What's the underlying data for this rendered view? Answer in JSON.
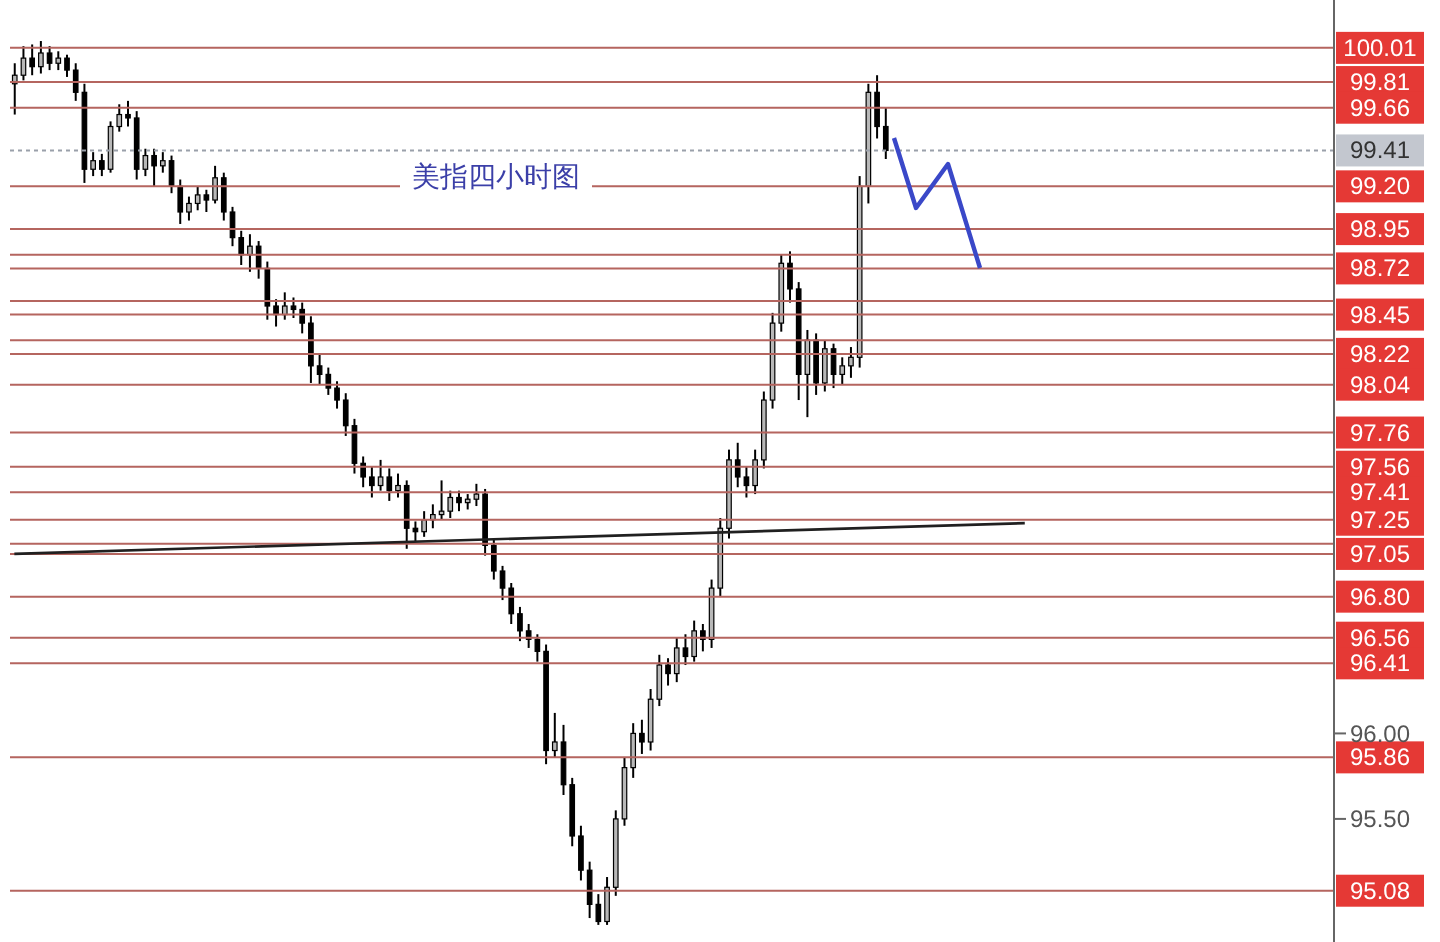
{
  "chart_data": {
    "type": "candlestick",
    "title": "美指四小时图",
    "tick_labels": "y",
    "ylim": [
      94.78,
      100.29
    ],
    "yticks": [
      {
        "value": 95.5,
        "label": "95.50"
      },
      {
        "value": 96,
        "label": "96.00"
      }
    ],
    "categories": [
      null,
      null,
      null,
      null,
      null,
      null,
      null,
      null,
      null,
      null,
      null,
      null,
      null,
      null,
      null,
      null,
      null,
      null,
      null,
      null,
      null,
      null,
      null,
      null,
      null,
      null,
      null,
      null,
      null,
      null,
      null,
      null,
      null,
      null,
      null,
      null,
      null,
      null,
      null,
      null,
      null,
      null,
      null,
      null,
      null,
      null,
      null,
      null,
      null,
      null,
      null,
      null,
      null,
      null,
      null,
      null,
      null,
      null,
      null,
      null,
      null,
      null,
      null,
      null,
      null,
      null,
      null,
      null,
      null,
      null,
      null,
      null,
      null,
      null,
      null,
      null,
      null,
      null,
      null,
      null,
      null,
      null,
      null,
      null,
      null,
      null,
      null,
      null,
      null,
      null,
      null,
      null,
      null,
      null,
      null,
      null,
      null,
      null,
      null,
      null,
      null,
      null,
      null,
      null,
      null,
      null,
      null,
      null,
      null,
      null,
      null,
      null,
      null,
      null,
      null,
      null,
      null,
      null,
      null,
      null,
      null,
      null,
      null,
      null,
      null,
      null,
      null,
      null,
      null,
      null,
      null,
      null,
      null,
      null,
      null,
      null,
      null,
      null,
      null,
      null,
      null,
      null,
      null,
      null,
      null,
      null,
      null,
      null,
      null,
      null,
      null,
      null
    ],
    "series": [
      {
        "type": "candlestick",
        "color": "#000000",
        "ohlc": [
          [
            99.8,
            99.92,
            99.62,
            99.85
          ],
          [
            99.85,
            100.02,
            99.82,
            99.95
          ],
          [
            99.95,
            100.03,
            99.85,
            99.9
          ],
          [
            99.9,
            100.05,
            99.86,
            99.98
          ],
          [
            99.98,
            100.02,
            99.88,
            99.92
          ],
          [
            99.92,
            99.99,
            99.88,
            99.95
          ],
          [
            99.95,
            99.97,
            99.84,
            99.88
          ],
          [
            99.88,
            99.92,
            99.7,
            99.75
          ],
          [
            99.75,
            99.8,
            99.22,
            99.3
          ],
          [
            99.3,
            99.4,
            99.26,
            99.35
          ],
          [
            99.35,
            99.39,
            99.26,
            99.3
          ],
          [
            99.3,
            99.58,
            99.28,
            99.55
          ],
          [
            99.55,
            99.68,
            99.52,
            99.62
          ],
          [
            99.62,
            99.7,
            99.55,
            99.6
          ],
          [
            99.6,
            99.64,
            99.24,
            99.3
          ],
          [
            99.3,
            99.42,
            99.26,
            99.38
          ],
          [
            99.38,
            99.42,
            99.2,
            99.32
          ],
          [
            99.32,
            99.4,
            99.28,
            99.35
          ],
          [
            99.35,
            99.38,
            99.16,
            99.2
          ],
          [
            99.2,
            99.24,
            98.98,
            99.05
          ],
          [
            99.05,
            99.14,
            99.0,
            99.1
          ],
          [
            99.1,
            99.2,
            99.06,
            99.15
          ],
          [
            99.15,
            99.18,
            99.05,
            99.12
          ],
          [
            99.12,
            99.32,
            99.1,
            99.25
          ],
          [
            99.25,
            99.28,
            99.0,
            99.05
          ],
          [
            99.05,
            99.08,
            98.85,
            98.9
          ],
          [
            98.9,
            98.94,
            98.74,
            98.8
          ],
          [
            98.8,
            98.92,
            98.7,
            98.85
          ],
          [
            98.85,
            98.88,
            98.66,
            98.72
          ],
          [
            98.72,
            98.76,
            98.42,
            98.5
          ],
          [
            98.5,
            98.54,
            98.38,
            98.45
          ],
          [
            98.45,
            98.58,
            98.42,
            98.5
          ],
          [
            98.5,
            98.55,
            98.43,
            98.48
          ],
          [
            98.48,
            98.52,
            98.34,
            98.4
          ],
          [
            98.4,
            98.44,
            98.05,
            98.15
          ],
          [
            98.15,
            98.22,
            98.04,
            98.1
          ],
          [
            98.1,
            98.14,
            97.98,
            98.02
          ],
          [
            98.02,
            98.06,
            97.9,
            97.95
          ],
          [
            97.95,
            97.99,
            97.74,
            97.8
          ],
          [
            97.8,
            97.84,
            97.52,
            97.58
          ],
          [
            97.58,
            97.62,
            97.44,
            97.5
          ],
          [
            97.5,
            97.56,
            97.38,
            97.45
          ],
          [
            97.45,
            97.6,
            97.42,
            97.5
          ],
          [
            97.5,
            97.55,
            97.36,
            97.42
          ],
          [
            97.42,
            97.52,
            97.38,
            97.45
          ],
          [
            97.45,
            97.48,
            97.08,
            97.2
          ],
          [
            97.2,
            97.24,
            97.12,
            97.18
          ],
          [
            97.18,
            97.3,
            97.15,
            97.25
          ],
          [
            97.25,
            97.34,
            97.2,
            97.28
          ],
          [
            97.28,
            97.48,
            97.25,
            97.3
          ],
          [
            97.3,
            97.42,
            97.26,
            97.38
          ],
          [
            97.38,
            97.42,
            97.3,
            97.35
          ],
          [
            97.35,
            97.4,
            97.31,
            97.37
          ],
          [
            97.37,
            97.46,
            97.33,
            97.4
          ],
          [
            97.4,
            97.43,
            97.04,
            97.1
          ],
          [
            97.1,
            97.14,
            96.9,
            96.95
          ],
          [
            96.95,
            96.98,
            96.78,
            96.85
          ],
          [
            96.85,
            96.88,
            96.64,
            96.7
          ],
          [
            96.7,
            96.74,
            96.54,
            96.6
          ],
          [
            96.6,
            96.64,
            96.5,
            96.55
          ],
          [
            96.55,
            96.58,
            96.42,
            96.48
          ],
          [
            96.48,
            96.52,
            95.82,
            95.9
          ],
          [
            95.9,
            96.12,
            95.86,
            95.95
          ],
          [
            95.95,
            96.05,
            95.64,
            95.7
          ],
          [
            95.7,
            95.74,
            95.34,
            95.4
          ],
          [
            95.4,
            95.46,
            95.14,
            95.2
          ],
          [
            95.2,
            95.25,
            94.92,
            95.0
          ],
          [
            95.0,
            95.06,
            94.88,
            94.9
          ],
          [
            94.9,
            95.16,
            94.88,
            95.1
          ],
          [
            95.1,
            95.55,
            95.05,
            95.5
          ],
          [
            95.5,
            95.86,
            95.46,
            95.8
          ],
          [
            95.8,
            96.06,
            95.74,
            96.0
          ],
          [
            96.0,
            96.08,
            95.88,
            95.95
          ],
          [
            95.95,
            96.26,
            95.9,
            96.2
          ],
          [
            96.2,
            96.46,
            96.16,
            96.4
          ],
          [
            96.4,
            96.44,
            96.28,
            96.35
          ],
          [
            96.35,
            96.56,
            96.3,
            96.5
          ],
          [
            96.5,
            96.58,
            96.4,
            96.45
          ],
          [
            96.45,
            96.66,
            96.42,
            96.6
          ],
          [
            96.6,
            96.64,
            96.48,
            96.55
          ],
          [
            96.55,
            96.9,
            96.5,
            96.85
          ],
          [
            96.85,
            97.26,
            96.8,
            97.2
          ],
          [
            97.2,
            97.66,
            97.14,
            97.6
          ],
          [
            97.6,
            97.7,
            97.44,
            97.5
          ],
          [
            97.5,
            97.56,
            97.38,
            97.45
          ],
          [
            97.45,
            97.66,
            97.4,
            97.6
          ],
          [
            97.6,
            98.0,
            97.55,
            97.95
          ],
          [
            97.95,
            98.46,
            97.9,
            98.4
          ],
          [
            98.4,
            98.8,
            98.35,
            98.75
          ],
          [
            98.75,
            98.82,
            98.52,
            98.6
          ],
          [
            98.6,
            98.64,
            97.95,
            98.1
          ],
          [
            98.1,
            98.36,
            97.85,
            98.3
          ],
          [
            98.3,
            98.34,
            97.98,
            98.05
          ],
          [
            98.05,
            98.3,
            98.0,
            98.25
          ],
          [
            98.25,
            98.28,
            98.02,
            98.1
          ],
          [
            98.1,
            98.2,
            98.04,
            98.15
          ],
          [
            98.15,
            98.26,
            98.08,
            98.2
          ],
          [
            98.2,
            99.26,
            98.14,
            99.2
          ],
          [
            99.2,
            99.8,
            99.1,
            99.75
          ],
          [
            99.75,
            99.85,
            99.48,
            99.55
          ],
          [
            99.55,
            99.66,
            99.36,
            99.41
          ],
          null,
          null,
          null,
          null,
          null,
          null,
          null,
          null,
          null,
          null,
          null,
          null,
          null,
          null,
          null,
          null,
          null,
          null,
          null,
          null,
          null,
          null,
          null,
          null,
          null,
          null,
          null,
          null,
          null,
          null,
          null,
          null,
          null,
          null,
          null,
          null,
          null,
          null,
          null,
          null,
          null,
          null,
          null,
          null,
          null,
          null,
          null,
          null,
          null,
          null,
          null
        ]
      },
      {
        "type": "line",
        "color": "#202020",
        "values": [
          97.05,
          null,
          null,
          null,
          null,
          null,
          null,
          null,
          null,
          null,
          null,
          null,
          null,
          null,
          null,
          null,
          null,
          null,
          null,
          null,
          null,
          null,
          null,
          null,
          null,
          null,
          null,
          null,
          null,
          null,
          null,
          null,
          null,
          null,
          null,
          null,
          null,
          null,
          null,
          null,
          null,
          null,
          null,
          null,
          null,
          null,
          null,
          null,
          null,
          null,
          null,
          null,
          null,
          null,
          null,
          null,
          null,
          null,
          null,
          null,
          null,
          null,
          null,
          null,
          null,
          null,
          null,
          null,
          null,
          null,
          null,
          null,
          null,
          null,
          null,
          null,
          null,
          null,
          null,
          null,
          null,
          null,
          null,
          null,
          null,
          null,
          null,
          null,
          null,
          null,
          null,
          null,
          null,
          null,
          null,
          null,
          null,
          null,
          null,
          null,
          null,
          null,
          null,
          null,
          null,
          null,
          null,
          null,
          null,
          null,
          null,
          null,
          null,
          null,
          null,
          null,
          97.23,
          null,
          null,
          null,
          null,
          null,
          null,
          null,
          null,
          null,
          null,
          null,
          null,
          null,
          null,
          null,
          null,
          null,
          null,
          null,
          null,
          null,
          null,
          null,
          null,
          null,
          null,
          null,
          null,
          null,
          null,
          null,
          null,
          null,
          null,
          null
        ]
      }
    ],
    "ref_lines": [
      {
        "axis": "y",
        "value": 100.01,
        "label": "100.01",
        "color": "#b5655f",
        "line_style": "solid"
      },
      {
        "axis": "y",
        "value": 99.81,
        "label": "99.81",
        "color": "#b5655f",
        "line_style": "solid"
      },
      {
        "axis": "y",
        "value": 99.66,
        "label": "99.66",
        "color": "#b5655f",
        "line_style": "solid"
      },
      {
        "axis": "y",
        "value": 99.41,
        "label": "99.41",
        "color": "#9aa0aa",
        "line_style": "dotted"
      },
      {
        "axis": "y",
        "value": 99.2,
        "label": "99.20",
        "color": "#b5655f",
        "line_style": "solid"
      },
      {
        "axis": "y",
        "value": 98.95,
        "label": "98.95",
        "color": "#b5655f",
        "line_style": "solid"
      },
      {
        "axis": "y",
        "value": 98.8,
        "label": null,
        "color": "#b5655f",
        "line_style": "solid"
      },
      {
        "axis": "y",
        "value": 98.72,
        "label": "98.72",
        "color": "#b5655f",
        "line_style": "solid"
      },
      {
        "axis": "y",
        "value": 98.53,
        "label": null,
        "color": "#b5655f",
        "line_style": "solid"
      },
      {
        "axis": "y",
        "value": 98.45,
        "label": "98.45",
        "color": "#b5655f",
        "line_style": "solid"
      },
      {
        "axis": "y",
        "value": 98.3,
        "label": null,
        "color": "#b5655f",
        "line_style": "solid"
      },
      {
        "axis": "y",
        "value": 98.22,
        "label": "98.22",
        "color": "#b5655f",
        "line_style": "solid"
      },
      {
        "axis": "y",
        "value": 98.04,
        "label": "98.04",
        "color": "#b5655f",
        "line_style": "solid"
      },
      {
        "axis": "y",
        "value": 97.76,
        "label": "97.76",
        "color": "#b5655f",
        "line_style": "solid"
      },
      {
        "axis": "y",
        "value": 97.56,
        "label": "97.56",
        "color": "#b5655f",
        "line_style": "solid"
      },
      {
        "axis": "y",
        "value": 97.41,
        "label": "97.41",
        "color": "#b5655f",
        "line_style": "solid"
      },
      {
        "axis": "y",
        "value": 97.25,
        "label": "97.25",
        "color": "#b5655f",
        "line_style": "solid"
      },
      {
        "axis": "y",
        "value": 97.11,
        "label": null,
        "color": "#b5655f",
        "line_style": "solid"
      },
      {
        "axis": "y",
        "value": 97.05,
        "label": "97.05",
        "color": "#b5655f",
        "line_style": "solid"
      },
      {
        "axis": "y",
        "value": 96.8,
        "label": "96.80",
        "color": "#b5655f",
        "line_style": "solid"
      },
      {
        "axis": "y",
        "value": 96.56,
        "label": "96.56",
        "color": "#b5655f",
        "line_style": "solid"
      },
      {
        "axis": "y",
        "value": 96.41,
        "label": "96.41",
        "color": "#b5655f",
        "line_style": "solid"
      },
      {
        "axis": "y",
        "value": 95.86,
        "label": "95.86",
        "color": "#b5655f",
        "line_style": "solid"
      },
      {
        "axis": "y",
        "value": 95.08,
        "label": "95.08",
        "color": "#b5655f",
        "line_style": "solid"
      }
    ]
  }
}
